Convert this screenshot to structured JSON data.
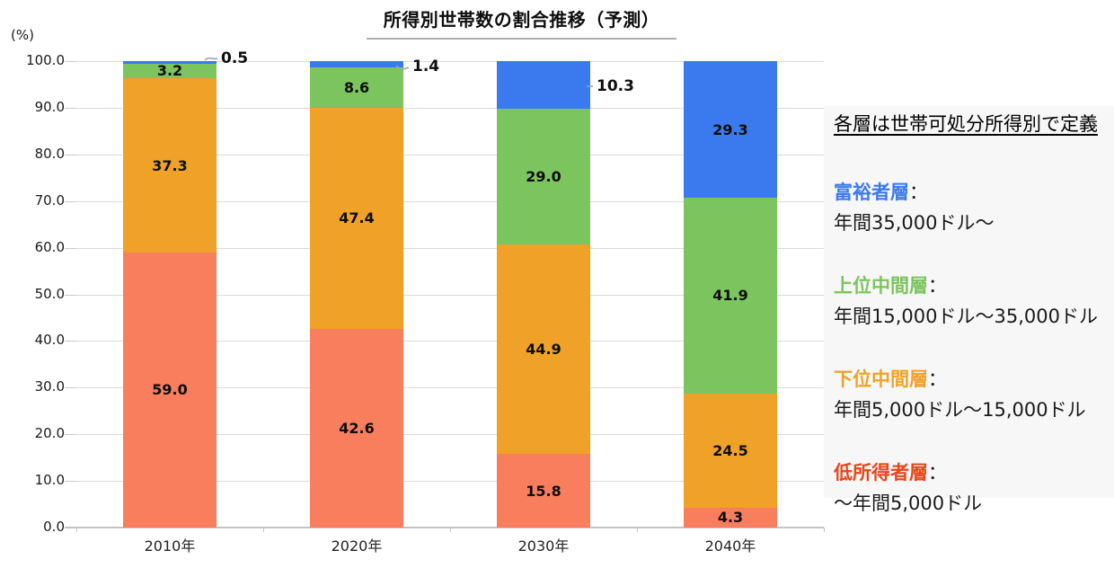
{
  "title": "所得別世帯数の割合推移（予測）",
  "y_axis": {
    "unit": "(%)",
    "ticks": [
      "100.0",
      "90.0",
      "80.0",
      "70.0",
      "60.0",
      "50.0",
      "40.0",
      "30.0",
      "20.0",
      "10.0",
      "0.0"
    ]
  },
  "chart_data": {
    "type": "bar",
    "stacked": true,
    "title": "所得別世帯数の割合推移（予測）",
    "ylabel": "(%)",
    "ylim": [
      0,
      100
    ],
    "grid": true,
    "categories": [
      "2010年",
      "2020年",
      "2030年",
      "2040年"
    ],
    "series": [
      {
        "name": "低所得者層",
        "color": "#f87e5d",
        "values": [
          59.0,
          42.6,
          15.8,
          4.3
        ]
      },
      {
        "name": "下位中間層",
        "color": "#efa227",
        "values": [
          37.3,
          47.4,
          44.9,
          24.5
        ]
      },
      {
        "name": "上位中間層",
        "color": "#7cc45e",
        "values": [
          3.2,
          8.6,
          29.0,
          41.9
        ]
      },
      {
        "name": "富裕者層",
        "color": "#3b79ef",
        "values": [
          0.5,
          1.4,
          10.3,
          29.3
        ]
      }
    ],
    "callouts": [
      {
        "category": "2010年",
        "series": "富裕者層",
        "label": "0.5"
      },
      {
        "category": "2020年",
        "series": "富裕者層",
        "label": "1.4"
      },
      {
        "category": "2030年",
        "series": "富裕者層",
        "label": "10.3"
      }
    ]
  },
  "legend": {
    "heading": "各層は世帯可処分所得別で定義",
    "colon": "：",
    "items": [
      {
        "term": "富裕者層",
        "color": "#3b79ef",
        "desc": "年間35,000ドル〜"
      },
      {
        "term": "上位中間層",
        "color": "#7cc45e",
        "desc": "年間15,000ドル〜35,000ドル"
      },
      {
        "term": "下位中間層",
        "color": "#efa227",
        "desc": "年間5,000ドル〜15,000ドル"
      },
      {
        "term": "低所得者層",
        "color": "#e8451c",
        "desc": "〜年間5,000ドル"
      }
    ]
  },
  "colors": {
    "gridline": "#dadada",
    "axis": "#c3c3c3",
    "leader": "#9aa4ad",
    "title_underline": "#a8afb5"
  }
}
